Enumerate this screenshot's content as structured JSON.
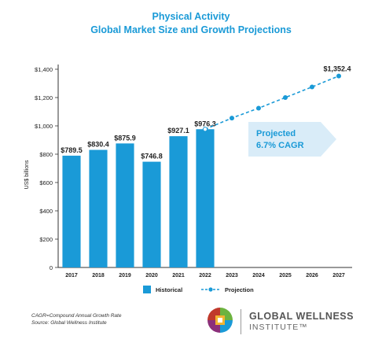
{
  "chart_data": {
    "type": "bar",
    "title": "Physical Activity",
    "subtitle": "Global Market Size and Growth Projections",
    "ylabel": "US$ billions",
    "ylim": [
      0,
      1400
    ],
    "yticks": [
      "0",
      "$200",
      "$400",
      "$600",
      "$800",
      "$1,000",
      "$1,200",
      "$1,400"
    ],
    "ytick_values": [
      0,
      200,
      400,
      600,
      800,
      1000,
      1200,
      1400
    ],
    "categories": [
      "2017",
      "2018",
      "2019",
      "2020",
      "2021",
      "2022",
      "2023",
      "2024",
      "2025",
      "2026",
      "2027"
    ],
    "series": [
      {
        "name": "Historical",
        "kind": "bar",
        "color": "#1a9ad7",
        "values": [
          789.5,
          830.4,
          875.9,
          746.8,
          927.1,
          976.3,
          null,
          null,
          null,
          null,
          null
        ],
        "labels": [
          "$789.5",
          "$830.4",
          "$875.9",
          "$746.8",
          "$927.1",
          "$976.3",
          "",
          "",
          "",
          "",
          ""
        ]
      },
      {
        "name": "Projection",
        "kind": "line-dashed",
        "color": "#1a9ad7",
        "values": [
          null,
          null,
          null,
          null,
          null,
          976.3,
          1055,
          1125,
          1200,
          1275,
          1352.4
        ],
        "end_label": "$1,352.4"
      }
    ],
    "annotation": {
      "line1": "Projected",
      "line2": "6.7% CAGR"
    },
    "legend_position": "bottom"
  },
  "notes": {
    "line1": "CAGR=Compound Annual Growth Rate",
    "line2": "Source: Global Wellness Institute"
  },
  "logo": {
    "line1": "GLOBAL WELLNESS",
    "line2": "INSTITUTE™"
  }
}
